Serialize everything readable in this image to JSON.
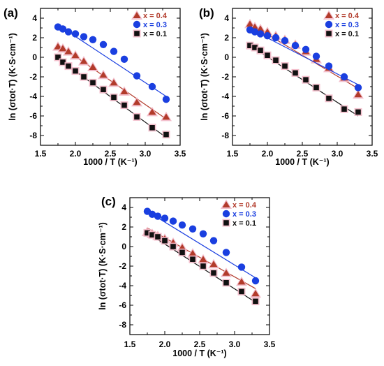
{
  "legend": {
    "series": [
      {
        "label": "x = 0.4",
        "color": "#b23b2b",
        "marker": "triangle",
        "halo": "#f2b8c6"
      },
      {
        "label": "x = 0.3",
        "color": "#1a3fe0",
        "marker": "circle",
        "halo": "#f2b8c6"
      },
      {
        "label": "x = 0.1",
        "color": "#111111",
        "marker": "square",
        "halo": "#f2b8c6"
      }
    ]
  },
  "chart_data": [
    {
      "type": "scatter",
      "panel_label": "(a)",
      "xlabel": "1000 / T (K⁻¹)",
      "ylabel": "ln (σtot·T) (K·S·cm⁻¹)",
      "xlim": [
        1.5,
        3.5
      ],
      "ylim": [
        -9,
        5
      ],
      "xticks": [
        "1.5",
        "2.0",
        "2.5",
        "3.0",
        "3.5"
      ],
      "yticks": [
        "-8",
        "-6",
        "-4",
        "-2",
        "0",
        "2",
        "4"
      ],
      "series": [
        {
          "name": "x = 0.4",
          "x": [
            1.75,
            1.82,
            1.9,
            2.0,
            2.12,
            2.25,
            2.4,
            2.55,
            2.7,
            2.88,
            3.1,
            3.3
          ],
          "y": [
            1.1,
            0.9,
            0.6,
            0.2,
            -0.4,
            -1.0,
            -1.8,
            -2.6,
            -3.5,
            -4.6,
            -5.6,
            -6.1
          ],
          "fit": [
            [
              1.75,
              1.3
            ],
            [
              3.3,
              -6.3
            ]
          ]
        },
        {
          "name": "x = 0.3",
          "x": [
            1.75,
            1.82,
            1.9,
            2.0,
            2.12,
            2.25,
            2.4,
            2.55,
            2.7,
            2.88,
            3.1,
            3.3
          ],
          "y": [
            3.1,
            2.9,
            2.6,
            2.4,
            2.1,
            1.8,
            1.3,
            0.6,
            -0.2,
            -1.9,
            -3.0,
            -4.3
          ],
          "fit": [
            [
              1.75,
              3.3
            ],
            [
              3.3,
              -4.0
            ]
          ]
        },
        {
          "name": "x = 0.1",
          "x": [
            1.75,
            1.82,
            1.9,
            2.0,
            2.12,
            2.25,
            2.4,
            2.55,
            2.7,
            2.88,
            3.1,
            3.3
          ],
          "y": [
            0.0,
            -0.5,
            -0.9,
            -1.4,
            -2.0,
            -2.6,
            -3.3,
            -4.1,
            -4.9,
            -6.1,
            -7.2,
            -7.9
          ],
          "fit": [
            [
              1.75,
              -0.1
            ],
            [
              3.3,
              -8.2
            ]
          ]
        }
      ]
    },
    {
      "type": "scatter",
      "panel_label": "(b)",
      "xlabel": "1000 / T (K⁻¹)",
      "ylabel": "ln (σtot·T) (K·S·cm⁻¹)",
      "xlim": [
        1.5,
        3.5
      ],
      "ylim": [
        -9,
        5
      ],
      "xticks": [
        "1.5",
        "2.0",
        "2.5",
        "3.0",
        "3.5"
      ],
      "yticks": [
        "-8",
        "-6",
        "-4",
        "-2",
        "0",
        "2",
        "4"
      ],
      "series": [
        {
          "name": "x = 0.4",
          "x": [
            1.75,
            1.82,
            1.9,
            2.0,
            2.12,
            2.25,
            2.4,
            2.55,
            2.7,
            2.88,
            3.1,
            3.3
          ],
          "y": [
            3.4,
            3.1,
            2.9,
            2.6,
            2.2,
            1.8,
            1.3,
            0.6,
            -0.2,
            -1.1,
            -2.1,
            -3.8
          ],
          "fit": [
            [
              1.75,
              3.4
            ],
            [
              3.3,
              -3.2
            ]
          ]
        },
        {
          "name": "x = 0.3",
          "x": [
            1.75,
            1.82,
            1.9,
            2.0,
            2.12,
            2.25,
            2.4,
            2.55,
            2.7,
            2.88,
            3.1,
            3.3
          ],
          "y": [
            2.8,
            2.6,
            2.4,
            2.2,
            2.0,
            1.7,
            1.2,
            0.8,
            0.1,
            -0.9,
            -2.0,
            -3.1
          ],
          "fit": [
            [
              1.75,
              2.9
            ],
            [
              3.3,
              -2.8
            ]
          ]
        },
        {
          "name": "x = 0.1",
          "x": [
            1.75,
            1.82,
            1.9,
            2.0,
            2.12,
            2.25,
            2.4,
            2.55,
            2.7,
            2.88,
            3.1,
            3.3
          ],
          "y": [
            1.2,
            1.0,
            0.7,
            0.2,
            -0.3,
            -0.9,
            -1.6,
            -2.3,
            -3.1,
            -4.2,
            -5.3,
            -5.6
          ],
          "fit": [
            [
              1.75,
              1.2
            ],
            [
              3.3,
              -6.0
            ]
          ]
        }
      ]
    },
    {
      "type": "scatter",
      "panel_label": "(c)",
      "xlabel": "1000 / T (K⁻¹)",
      "ylabel": "ln (σtot·T) (K·S·cm⁻¹)",
      "xlim": [
        1.5,
        3.5
      ],
      "ylim": [
        -9,
        5
      ],
      "xticks": [
        "1.5",
        "2.0",
        "2.5",
        "3.0",
        "3.5"
      ],
      "yticks": [
        "-8",
        "-6",
        "-4",
        "-2",
        "0",
        "2",
        "4"
      ],
      "series": [
        {
          "name": "x = 0.4",
          "x": [
            1.75,
            1.82,
            1.9,
            2.0,
            2.12,
            2.25,
            2.4,
            2.55,
            2.7,
            2.88,
            3.1,
            3.3
          ],
          "y": [
            1.5,
            1.3,
            1.1,
            0.8,
            0.4,
            -0.1,
            -0.7,
            -1.3,
            -1.8,
            -2.7,
            -3.6,
            -4.8
          ],
          "fit": [
            [
              1.75,
              1.9
            ],
            [
              3.3,
              -4.3
            ]
          ]
        },
        {
          "name": "x = 0.3",
          "x": [
            1.75,
            1.82,
            1.9,
            2.0,
            2.12,
            2.25,
            2.4,
            2.55,
            2.7,
            2.88,
            3.1,
            3.3
          ],
          "y": [
            3.6,
            3.3,
            3.1,
            2.9,
            2.6,
            2.2,
            1.8,
            1.3,
            0.6,
            -0.6,
            -2.1,
            -3.5
          ],
          "fit": [
            [
              1.75,
              3.6
            ],
            [
              3.3,
              -3.2
            ]
          ]
        },
        {
          "name": "x = 0.1",
          "x": [
            1.75,
            1.82,
            1.9,
            2.0,
            2.12,
            2.25,
            2.4,
            2.55,
            2.7,
            2.88,
            3.1,
            3.3
          ],
          "y": [
            1.4,
            1.2,
            1.0,
            0.6,
            0.0,
            -0.6,
            -1.3,
            -2.0,
            -2.7,
            -3.7,
            -4.6,
            -5.6
          ],
          "fit": [
            [
              1.75,
              1.4
            ],
            [
              3.3,
              -5.7
            ]
          ]
        }
      ]
    }
  ]
}
